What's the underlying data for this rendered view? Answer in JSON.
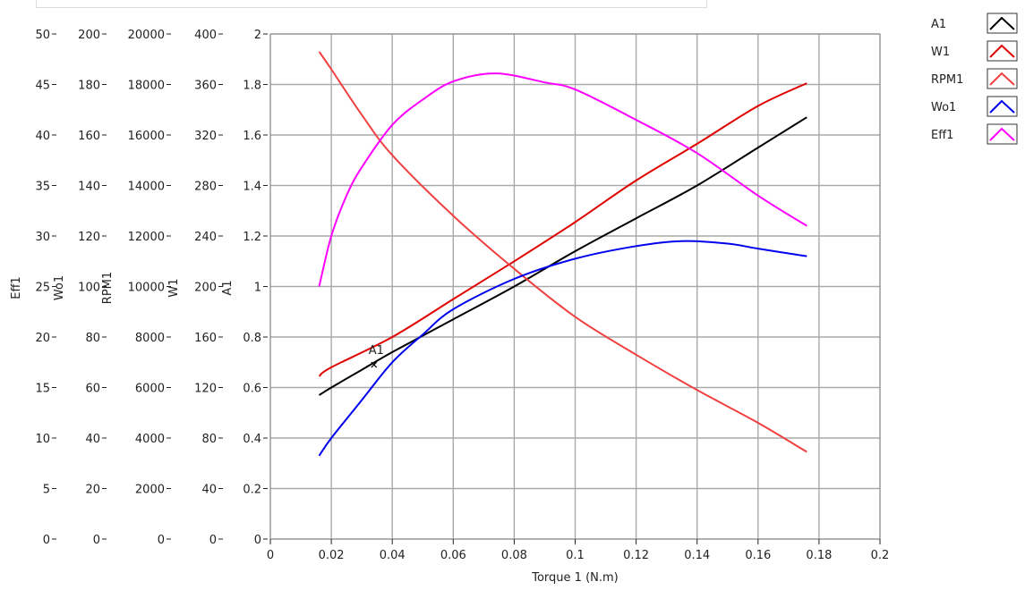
{
  "chart_data": {
    "type": "line",
    "xlabel": "Torque 1 (N.m)",
    "xlim": [
      0,
      0.2
    ],
    "x_ticks": [
      "0",
      "0.02",
      "0.04",
      "0.06",
      "0.08",
      "0.1",
      "0.12",
      "0.14",
      "0.16",
      "0.18",
      "0.2"
    ],
    "grid": true,
    "legend_position": "top-right",
    "y_axes": [
      {
        "key": "Eff1",
        "label": "Eff1",
        "ylim": [
          0,
          50
        ],
        "ticks": [
          "0",
          "5",
          "10",
          "15",
          "20",
          "25",
          "30",
          "35",
          "40",
          "45",
          "50"
        ]
      },
      {
        "key": "Wo1",
        "label": "Wo1",
        "ylim": [
          0,
          200
        ],
        "ticks": [
          "0",
          "20",
          "40",
          "60",
          "80",
          "100",
          "120",
          "140",
          "160",
          "180",
          "200"
        ]
      },
      {
        "key": "RPM1",
        "label": "RPM1",
        "ylim": [
          0,
          20000
        ],
        "ticks": [
          "0",
          "2000",
          "4000",
          "6000",
          "8000",
          "10000",
          "12000",
          "14000",
          "16000",
          "18000",
          "20000"
        ]
      },
      {
        "key": "W1",
        "label": "W1",
        "ylim": [
          0,
          400
        ],
        "ticks": [
          "0",
          "40",
          "80",
          "120",
          "160",
          "200",
          "240",
          "280",
          "320",
          "360",
          "400"
        ]
      },
      {
        "key": "A1",
        "label": "A1",
        "ylim": [
          0,
          2
        ],
        "ticks": [
          "0",
          "0.2",
          "0.4",
          "0.6",
          "0.8",
          "1",
          "1.2",
          "1.4",
          "1.6",
          "1.8",
          "2"
        ]
      }
    ],
    "series": [
      {
        "name": "A1",
        "axis": "A1",
        "color": "#000000",
        "x": [
          0.016,
          0.02,
          0.03,
          0.04,
          0.06,
          0.08,
          0.1,
          0.12,
          0.14,
          0.16,
          0.176
        ],
        "y": [
          0.57,
          0.6,
          0.67,
          0.74,
          0.87,
          1.0,
          1.14,
          1.27,
          1.4,
          1.55,
          1.67
        ]
      },
      {
        "name": "W1",
        "axis": "W1",
        "color": "#e00000",
        "x": [
          0.016,
          0.02,
          0.04,
          0.06,
          0.08,
          0.1,
          0.12,
          0.14,
          0.16,
          0.176
        ],
        "y": [
          129,
          136,
          160,
          190,
          220,
          251,
          284,
          313,
          343,
          361
        ]
      },
      {
        "name": "RPM1",
        "axis": "RPM1",
        "color": "#f04040",
        "x": [
          0.016,
          0.02,
          0.03,
          0.04,
          0.06,
          0.08,
          0.1,
          0.12,
          0.14,
          0.16,
          0.176
        ],
        "y": [
          19300,
          18600,
          16800,
          15200,
          12800,
          10700,
          8800,
          7300,
          5900,
          4600,
          3450
        ]
      },
      {
        "name": "Wo1",
        "axis": "Wo1",
        "color": "#0000ee",
        "x": [
          0.016,
          0.02,
          0.03,
          0.04,
          0.05,
          0.06,
          0.08,
          0.1,
          0.12,
          0.135,
          0.15,
          0.16,
          0.176
        ],
        "y": [
          33,
          40,
          55,
          70,
          81,
          91,
          103,
          111,
          116,
          118,
          117,
          115,
          112
        ]
      },
      {
        "name": "Eff1",
        "axis": "Eff1",
        "color": "#ff00ff",
        "x": [
          0.016,
          0.02,
          0.025,
          0.03,
          0.04,
          0.05,
          0.06,
          0.074,
          0.09,
          0.1,
          0.12,
          0.14,
          0.16,
          0.176
        ],
        "y": [
          25,
          30,
          34,
          36.8,
          41,
          43.5,
          45.3,
          46.1,
          45.2,
          44.5,
          41.5,
          38.2,
          34,
          31
        ]
      }
    ],
    "annotations": [
      {
        "text": "A1",
        "x": 0.034,
        "y": 0.69,
        "series": "A1",
        "marker": "x"
      }
    ]
  },
  "legend": [
    {
      "name": "A1",
      "color": "#000000",
      "icon": "line-icon"
    },
    {
      "name": "W1",
      "color": "#e00000",
      "icon": "line-icon"
    },
    {
      "name": "RPM1",
      "color": "#f04040",
      "icon": "line-icon"
    },
    {
      "name": "Wo1",
      "color": "#0000ee",
      "icon": "line-icon"
    },
    {
      "name": "Eff1",
      "color": "#ff00ff",
      "icon": "line-icon"
    }
  ]
}
